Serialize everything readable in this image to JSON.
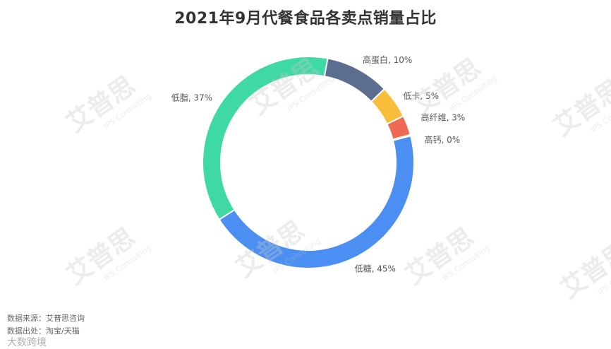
{
  "chart_data": {
    "type": "pie",
    "title": "2021年9月代餐食品各卖点销量占比",
    "donut": true,
    "labels": [
      "高蛋白",
      "低卡",
      "高纤维",
      "高钙",
      "低糖",
      "低脂"
    ],
    "values": [
      10,
      5,
      3,
      0,
      45,
      37
    ],
    "value_labels": [
      "高蛋白, 10%",
      "低卡, 5%",
      "高纤维, 3%",
      "高钙, 0%",
      "低糖, 45%",
      "低脂, 37%"
    ],
    "colors": [
      "#5b6e8f",
      "#f9bd3c",
      "#ee6a55",
      "#a9a9a9",
      "#4b8ff2",
      "#3fd9a5"
    ]
  },
  "source": {
    "line1": "数据来源：艾普思咨询",
    "line2": "数据出处：淘宝/天猫"
  },
  "watermark": {
    "text": "艾普思",
    "sub": "IPS Consulting"
  },
  "brand": "大数跨境"
}
